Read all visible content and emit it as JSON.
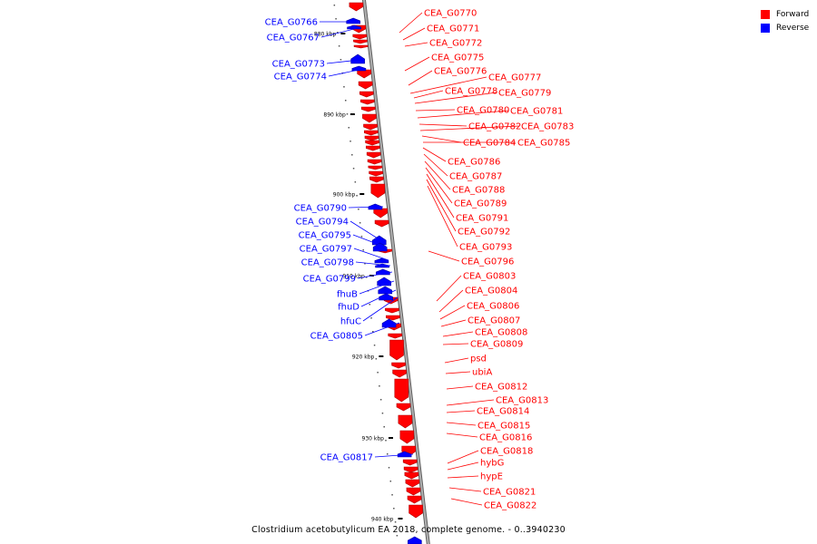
{
  "map": {
    "caption": "Clostridium acetobutylicum EA 2018, complete genome. - 0..3940230",
    "legend": [
      {
        "label": "Forward",
        "color": "#ff0000"
      },
      {
        "label": "Reverse",
        "color": "#0000ff"
      }
    ],
    "colors": {
      "forward": "#ff0000",
      "reverse": "#0000ff",
      "backbone": "#808080"
    },
    "ticks": [
      "880 kbp",
      "890 kbp",
      "900 kbp",
      "910 kbp",
      "920 kbp",
      "930 kbp",
      "940 kbp"
    ],
    "forward_labels": [
      "CEA_G0770",
      "CEA_G0771",
      "CEA_G0772",
      "CEA_G0775",
      "CEA_G0776",
      "CEA_G0777",
      "CEA_G0778",
      "CEA_G0779",
      "CEA_G0780",
      "CEA_G0781",
      "CEA_G0782",
      "CEA_G0783",
      "CEA_G0784",
      "CEA_G0785",
      "CEA_G0786",
      "CEA_G0787",
      "CEA_G0788",
      "CEA_G0789",
      "CEA_G0791",
      "CEA_G0792",
      "CEA_G0793",
      "CEA_G0796",
      "CEA_G0803",
      "CEA_G0804",
      "CEA_G0806",
      "CEA_G0807",
      "CEA_G0808",
      "CEA_G0809",
      "psd",
      "ubiA",
      "CEA_G0812",
      "CEA_G0813",
      "CEA_G0814",
      "CEA_G0815",
      "CEA_G0816",
      "CEA_G0818",
      "hybG",
      "hypE",
      "CEA_G0821",
      "CEA_G0822"
    ],
    "reverse_labels": [
      "CEA_G0766",
      "CEA_G0767",
      "CEA_G0773",
      "CEA_G0774",
      "CEA_G0790",
      "CEA_G0794",
      "CEA_G0795",
      "CEA_G0797",
      "CEA_G0798",
      "CEA_G0799",
      "fhuB",
      "fhuD",
      "hfuC",
      "CEA_G0805",
      "CEA_G0817"
    ]
  }
}
